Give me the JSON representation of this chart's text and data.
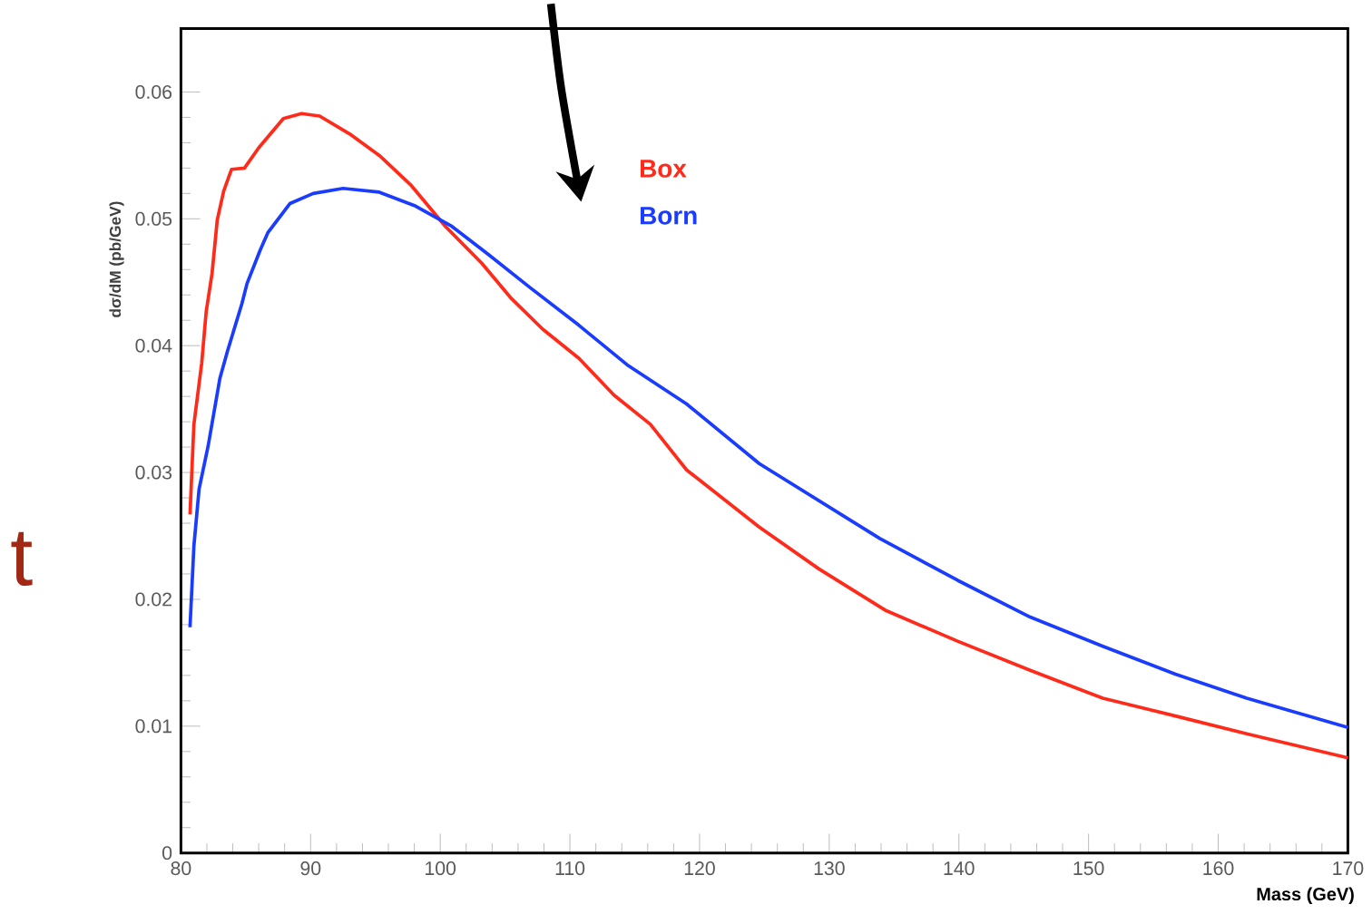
{
  "chart_data": {
    "type": "line",
    "xlabel": "Mass (GeV)",
    "ylabel": "dσ/dM (pb/GeV)",
    "xlim": [
      80,
      170
    ],
    "ylim": [
      0,
      0.065
    ],
    "xticks": [
      80,
      90,
      100,
      110,
      120,
      130,
      140,
      150,
      160,
      170
    ],
    "yticks": [
      0,
      0.01,
      0.02,
      0.03,
      0.04,
      0.05,
      0.06
    ],
    "legend": "top",
    "marker": "none",
    "line_style": "solid",
    "annotations": [
      "t"
    ],
    "series": [
      {
        "name": "Box",
        "color": "#ff2a1a",
        "x": [
          80.7,
          81.0,
          81.6,
          81.95,
          82.4,
          82.8,
          83.3,
          83.9,
          84.9,
          86.0,
          87.9,
          89.3,
          90.7,
          93.0,
          95.3,
          97.7,
          100.4,
          103.2,
          105.5,
          107.9,
          110.7,
          113.4,
          116.2,
          119.0,
          124.6,
          129.2,
          134.4,
          139.9,
          145.5,
          151.1,
          156.7,
          162.2,
          170
        ],
        "values": [
          0.0267,
          0.0338,
          0.0386,
          0.0427,
          0.0457,
          0.0499,
          0.0522,
          0.0539,
          0.054,
          0.0556,
          0.0579,
          0.0583,
          0.0581,
          0.0567,
          0.055,
          0.0527,
          0.0494,
          0.0465,
          0.0437,
          0.0413,
          0.039,
          0.0361,
          0.0338,
          0.0302,
          0.0257,
          0.0224,
          0.0191,
          0.0167,
          0.0144,
          0.0122,
          0.0108,
          0.0094,
          0.0075
        ]
      },
      {
        "name": "Born",
        "color": "#1a3cff",
        "x": [
          80.7,
          81.0,
          81.4,
          82.1,
          83.0,
          83.6,
          84.7,
          85.1,
          86.1,
          86.7,
          88.4,
          90.2,
          92.5,
          95.3,
          98.1,
          100.9,
          103.7,
          106.9,
          110.7,
          114.4,
          119.0,
          124.6,
          133.9,
          139.9,
          145.5,
          151.1,
          156.7,
          162.2,
          170
        ],
        "values": [
          0.0178,
          0.0242,
          0.0287,
          0.0321,
          0.0374,
          0.0396,
          0.0433,
          0.0449,
          0.0475,
          0.0489,
          0.0512,
          0.052,
          0.0524,
          0.0521,
          0.051,
          0.0494,
          0.0472,
          0.0446,
          0.0416,
          0.0385,
          0.0354,
          0.0307,
          0.0248,
          0.0215,
          0.0186,
          0.0163,
          0.0141,
          0.0122,
          0.0099
        ]
      }
    ]
  }
}
